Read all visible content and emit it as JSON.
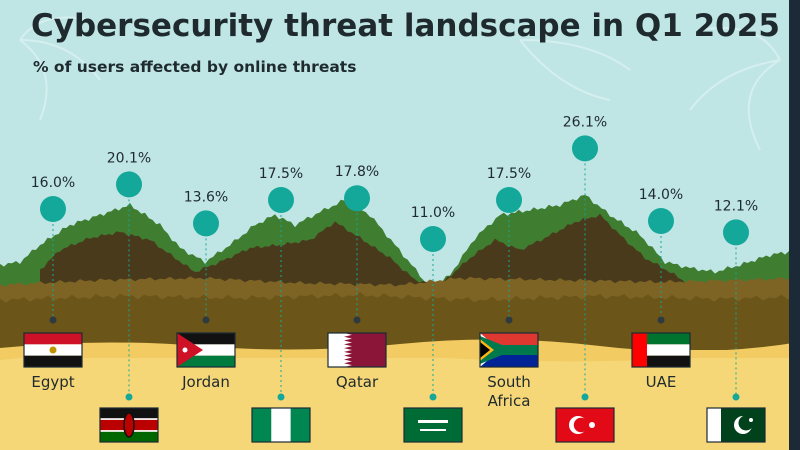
{
  "header": {
    "title": "Cybersecurity threat landscape in Q1 2025",
    "subtitle": "% of users affected by online threats"
  },
  "colors": {
    "sky": "#bfe6e5",
    "sand": "#f2cb62",
    "sand_light": "#f6d777",
    "ground_back": "#7d6425",
    "ground_front": "#6b5519",
    "mountain_green": "#3f7d30",
    "mountain_dark": "#4a3a1c",
    "marker": "#14a89a",
    "text": "#1f2a2e",
    "border": "#1b2a36"
  },
  "chart_data": {
    "type": "scatter",
    "title": "Cybersecurity threat landscape in Q1 2025",
    "subtitle": "% of users affected by online threats",
    "unit": "%",
    "categories": [
      "Egypt",
      "Kenya",
      "Jordan",
      "Nigeria",
      "Qatar",
      "Saudi Arabia",
      "South Africa",
      "Turkey",
      "UAE",
      "Pakistan"
    ],
    "values": [
      16.0,
      20.1,
      13.6,
      17.5,
      17.8,
      11.0,
      17.5,
      26.1,
      14.0,
      12.1
    ],
    "value_labels": [
      "16.0%",
      "20.1%",
      "13.6%",
      "17.5%",
      "17.8%",
      "11.0%",
      "17.5%",
      "26.1%",
      "14.0%",
      "12.1%"
    ],
    "country_labels": [
      "Egypt",
      "",
      "Jordan",
      "",
      "Qatar",
      "",
      "South Africa",
      "",
      "UAE",
      ""
    ],
    "flags": [
      "egypt-flag",
      "kenya-flag",
      "jordan-flag",
      "nigeria-flag",
      "qatar-flag",
      "saudi-arabia-flag",
      "south-africa-flag",
      "turkey-flag",
      "uae-flag",
      "pakistan-flag"
    ]
  }
}
